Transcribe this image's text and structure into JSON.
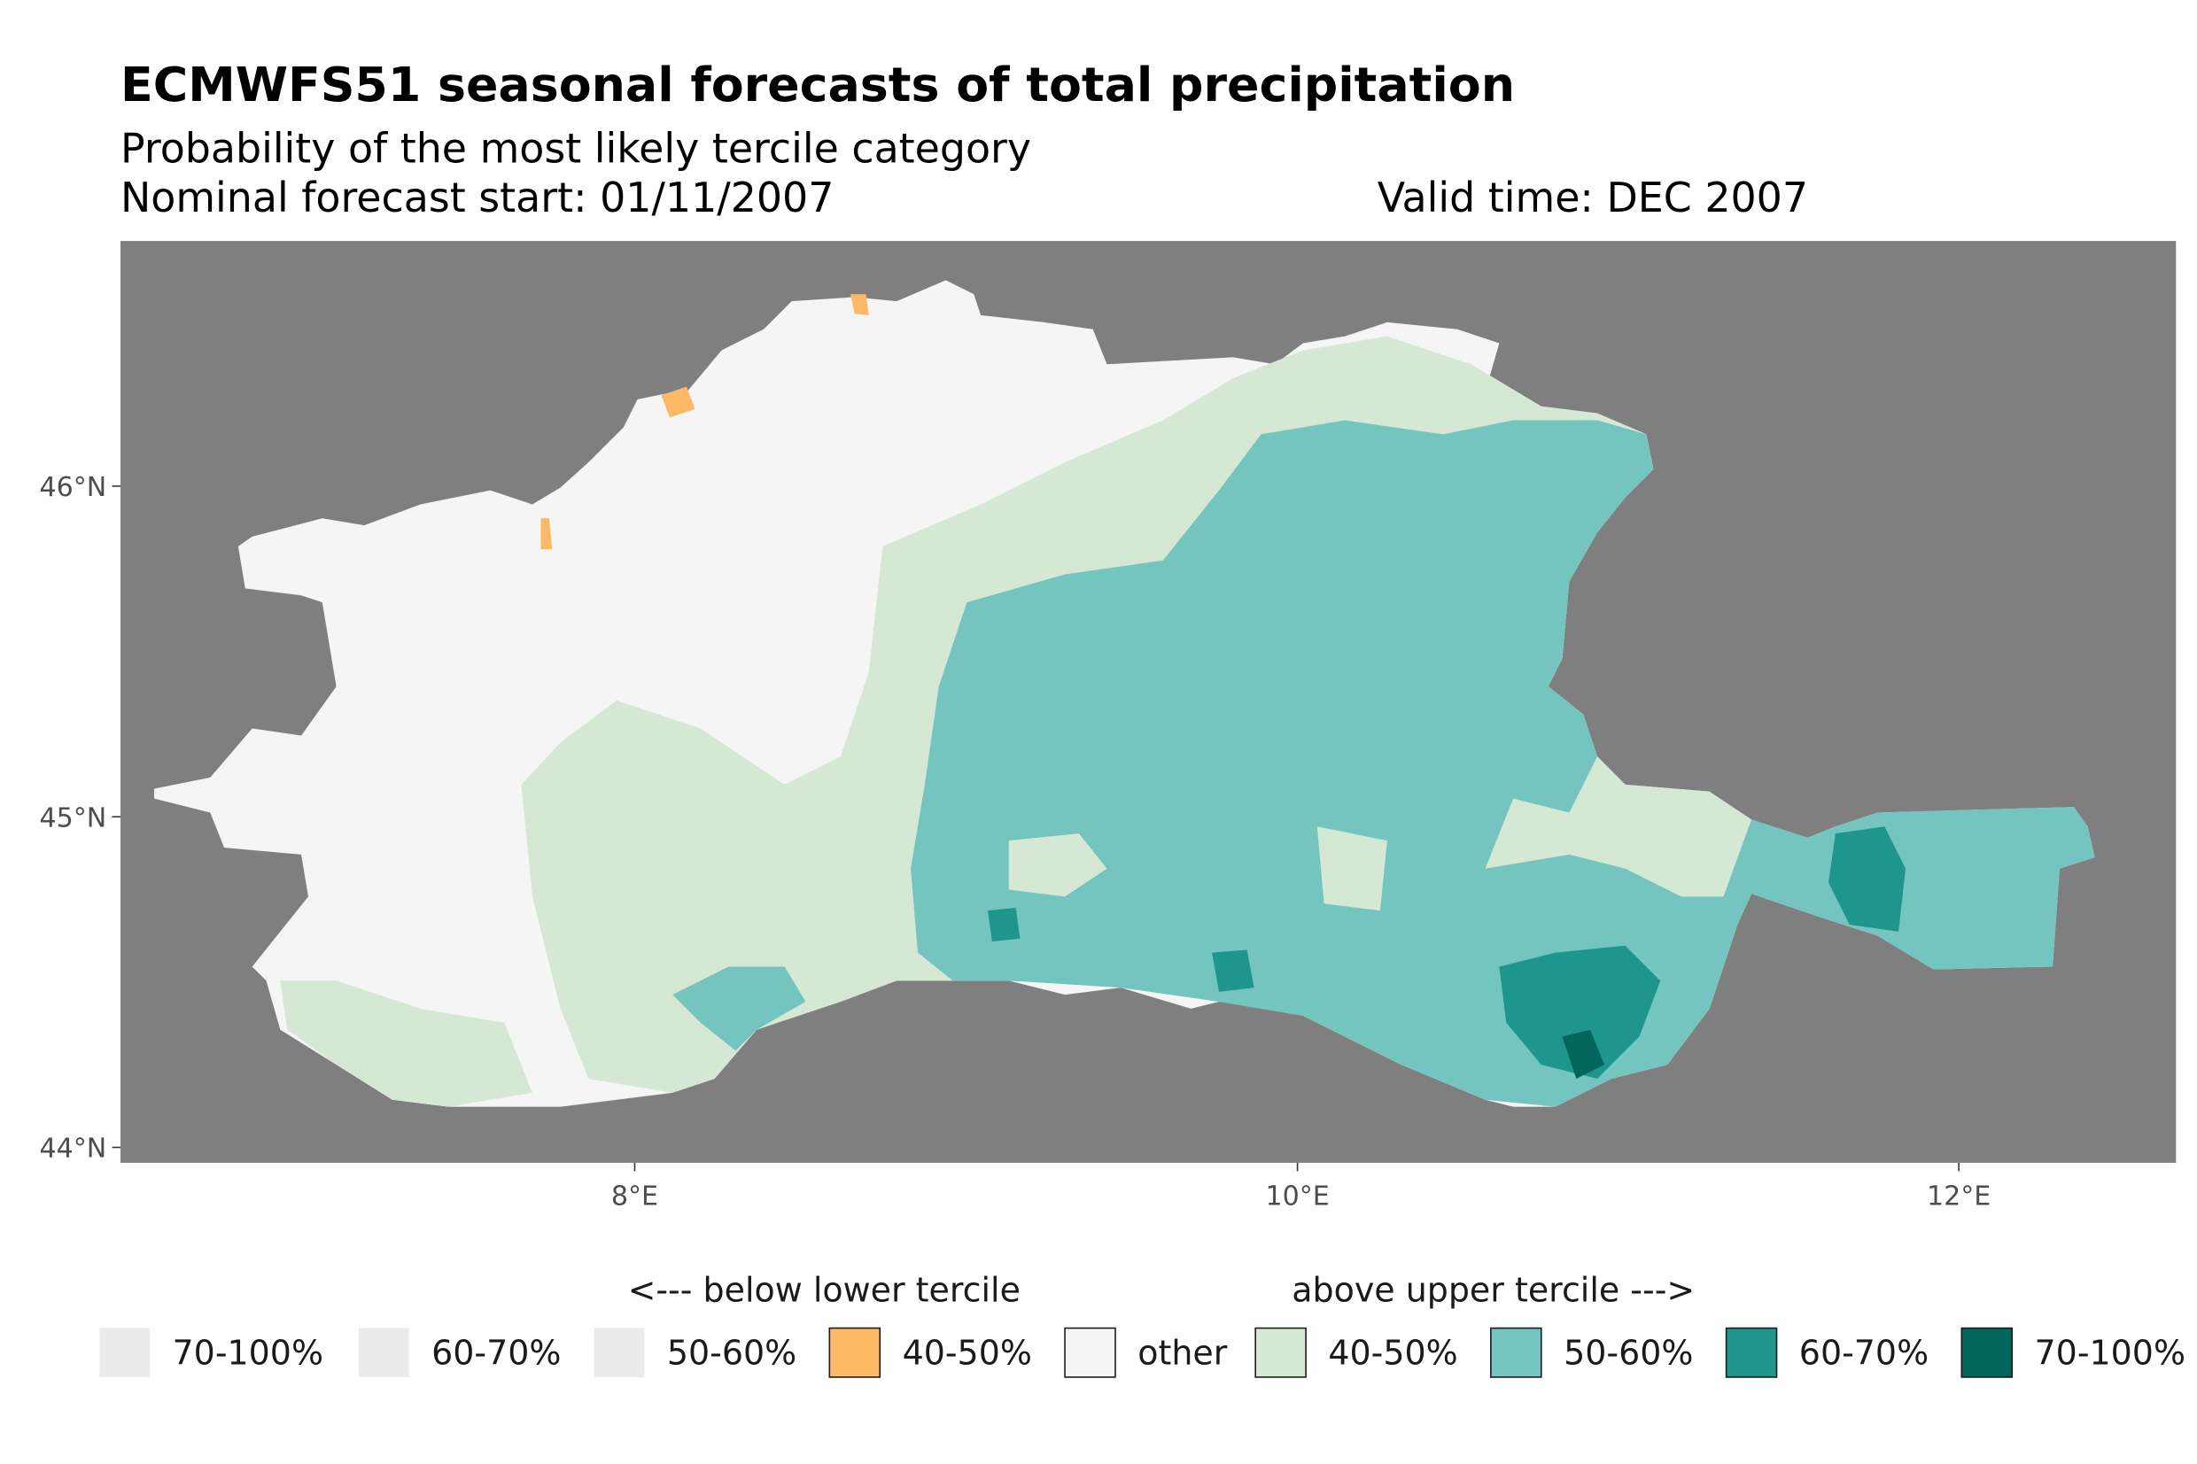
{
  "title": "ECMWFS51 seasonal forecasts of total precipitation",
  "subtitle": "Probability of the most likely tercile category",
  "forecast_start": "Nominal forecast start: 01/11/2007",
  "valid_time": "Valid time: DEC 2007",
  "colors": {
    "background_sea": "#7f7f7f",
    "other": "#f5f5f5",
    "below_70_100": "#ebebeb",
    "below_60_70": "#ebebeb",
    "below_50_60": "#ebebeb",
    "below_40_50": "#fdb863",
    "above_40_50": "#d5e8d4",
    "above_50_60": "#74c5c0",
    "above_60_70": "#1f968b",
    "above_70_100": "#03665c"
  },
  "chart_data": {
    "type": "heatmap",
    "title": "ECMWFS51 seasonal forecasts of total precipitation",
    "y_ticks": [
      "44°N",
      "45°N",
      "46°N"
    ],
    "x_ticks": [
      "8°E",
      "10°E",
      "12°E"
    ],
    "y_values": [
      44,
      45,
      46
    ],
    "x_values": [
      8,
      10,
      12
    ],
    "xlim": [
      6.45,
      12.65
    ],
    "ylim": [
      43.95,
      46.74
    ],
    "legend": {
      "below_header": "<--- below lower tercile",
      "above_header": "above upper tercile --->",
      "placement": "bottom",
      "entries": [
        {
          "label": "70-100%",
          "color": "#ebebeb",
          "group": "below"
        },
        {
          "label": "60-70%",
          "color": "#ebebeb",
          "group": "below"
        },
        {
          "label": "50-60%",
          "color": "#ebebeb",
          "group": "below"
        },
        {
          "label": "40-50%",
          "color": "#fdb863",
          "group": "below"
        },
        {
          "label": "other",
          "color": "#f5f5f5",
          "group": "other"
        },
        {
          "label": "40-50%",
          "color": "#d5e8d4",
          "group": "above"
        },
        {
          "label": "50-60%",
          "color": "#74c5c0",
          "group": "above"
        },
        {
          "label": "60-70%",
          "color": "#1f968b",
          "group": "above"
        },
        {
          "label": "70-100%",
          "color": "#03665c",
          "group": "above"
        }
      ]
    }
  }
}
